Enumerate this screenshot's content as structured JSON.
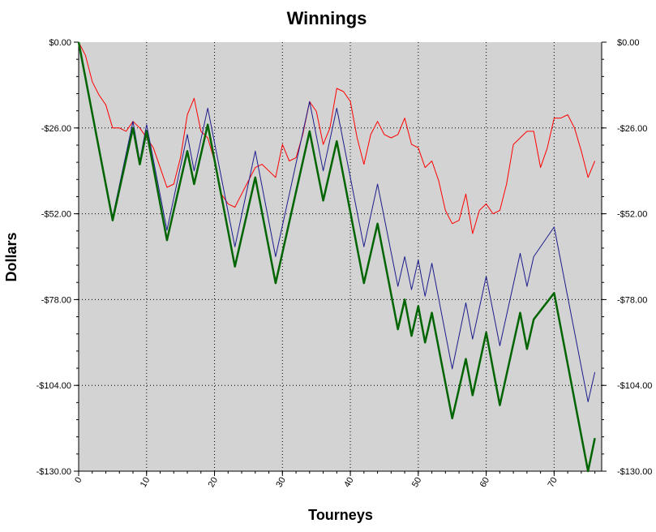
{
  "chart_data": {
    "type": "line",
    "title": "Winnings",
    "xlabel": "Tourneys",
    "ylabel": "Dollars",
    "xlim": [
      0,
      77
    ],
    "ylim": [
      -130,
      0
    ],
    "x_ticks": [
      0,
      10,
      20,
      30,
      40,
      50,
      60,
      70
    ],
    "x_tick_labels": [
      "0",
      "10",
      "20",
      "30",
      "40",
      "50",
      "60",
      "70"
    ],
    "y_ticks": [
      0,
      -26,
      -52,
      -78,
      -104,
      -130
    ],
    "y_tick_labels": [
      "$0.00",
      "-$26.00",
      "-$52.00",
      "-$78.00",
      "-$104.00",
      "-$130.00"
    ],
    "grid": true,
    "legend": "none",
    "plot_background": "#d3d3d3",
    "series": [
      {
        "color": "#ff0000",
        "line_width": 1,
        "x": [
          0,
          1,
          2,
          3,
          4,
          5,
          6,
          7,
          8,
          9,
          10,
          11,
          12,
          13,
          14,
          15,
          16,
          17,
          18,
          19,
          20,
          21,
          22,
          23,
          24,
          25,
          26,
          27,
          28,
          29,
          30,
          31,
          32,
          33,
          34,
          35,
          36,
          37,
          38,
          39,
          40,
          41,
          42,
          43,
          44,
          45,
          46,
          47,
          48,
          49,
          50,
          51,
          52,
          53,
          54,
          55,
          56,
          57,
          58,
          59,
          60,
          61,
          62,
          63,
          64,
          65,
          66,
          67,
          68,
          69,
          70,
          71,
          72,
          73,
          74,
          75,
          76
        ],
        "values": [
          0,
          -4,
          -12,
          -16,
          -19,
          -26,
          -26,
          -27,
          -24,
          -26,
          -29,
          -32,
          -38,
          -44,
          -43,
          -35,
          -22,
          -17,
          -27,
          -29,
          -36,
          -46,
          -49,
          -50,
          -46,
          -42,
          -38,
          -37,
          -39,
          -41,
          -31,
          -36,
          -35,
          -28,
          -18,
          -21,
          -31,
          -26,
          -14,
          -15,
          -18,
          -29,
          -37,
          -28,
          -24,
          -28,
          -29,
          -28,
          -23,
          -31,
          -32,
          -38,
          -36,
          -42,
          -51,
          -55,
          -54,
          -46,
          -58,
          -51,
          -49,
          -52,
          -51,
          -43,
          -31,
          -29,
          -27,
          -27,
          -38,
          -32,
          -23,
          -23,
          -22,
          -26,
          -33,
          -41,
          -36
        ]
      },
      {
        "color": "#1c1c8c",
        "line_width": 1,
        "x": [
          0,
          5,
          8,
          9,
          10,
          13,
          16,
          17,
          19,
          23,
          26,
          29,
          34,
          36,
          38,
          42,
          44,
          47,
          48,
          49,
          50,
          51,
          52,
          55,
          57,
          58,
          60,
          62,
          65,
          66,
          67,
          70,
          75,
          76
        ],
        "values": [
          0,
          -53,
          -24,
          -36,
          -25,
          -57,
          -28,
          -39,
          -20,
          -62,
          -33,
          -65,
          -18,
          -39,
          -20,
          -62,
          -43,
          -74,
          -65,
          -75,
          -66,
          -77,
          -67,
          -99,
          -79,
          -90,
          -71,
          -92,
          -64,
          -74,
          -65,
          -56,
          -109,
          -100
        ]
      },
      {
        "color": "#006400",
        "line_width": 2.5,
        "x": [
          0,
          5,
          8,
          9,
          10,
          13,
          16,
          17,
          19,
          23,
          26,
          29,
          34,
          36,
          38,
          42,
          44,
          47,
          48,
          49,
          50,
          51,
          52,
          55,
          57,
          58,
          60,
          62,
          65,
          66,
          67,
          70,
          75,
          76
        ],
        "values": [
          0,
          -54,
          -26,
          -37,
          -27,
          -60,
          -33,
          -43,
          -25,
          -68,
          -41,
          -73,
          -27,
          -48,
          -30,
          -73,
          -55,
          -87,
          -78,
          -89,
          -80,
          -91,
          -82,
          -114,
          -96,
          -107,
          -88,
          -110,
          -82,
          -93,
          -84,
          -76,
          -130,
          -120
        ]
      }
    ]
  }
}
